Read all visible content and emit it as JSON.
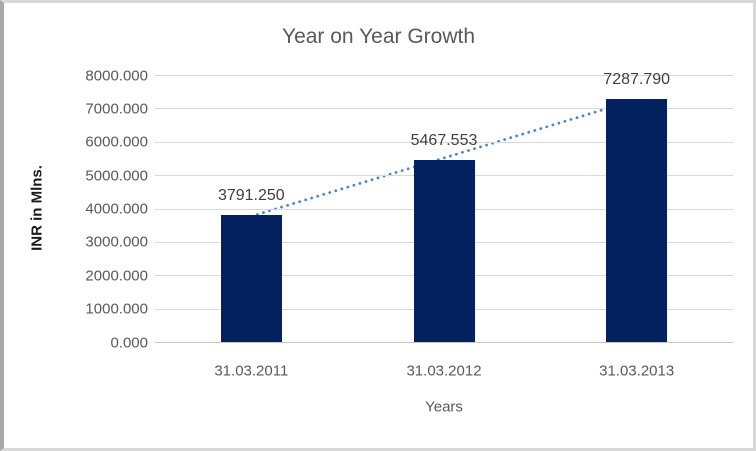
{
  "chart_data": {
    "type": "bar",
    "title": "Year on Year Growth",
    "xlabel": "Years",
    "ylabel": "INR in Mlns.",
    "categories": [
      "31.03.2011",
      "31.03.2012",
      "31.03.2013"
    ],
    "values": [
      3791.25,
      5467.553,
      7287.79
    ],
    "data_labels": [
      "3791.250",
      "5467.553",
      "7287.790"
    ],
    "ylim": [
      0,
      8000
    ],
    "ytick_step": 1000,
    "ytick_labels": [
      "8000.000",
      "7000.000",
      "6000.000",
      "5000.000",
      "4000.000",
      "3000.000",
      "2000.000",
      "1000.000",
      "0.000"
    ],
    "grid": true,
    "legend": false,
    "trendline": {
      "type": "linear",
      "style": "dotted"
    },
    "colors": {
      "bar": "#04215F",
      "trendline": "#4E86C6",
      "gridline": "#D9D9D9",
      "axis_line": "#C6C6C6",
      "title_text": "#595959",
      "tick_text": "#595959",
      "data_label_text": "#404040",
      "y_title_text": "#1A1A1A"
    }
  }
}
